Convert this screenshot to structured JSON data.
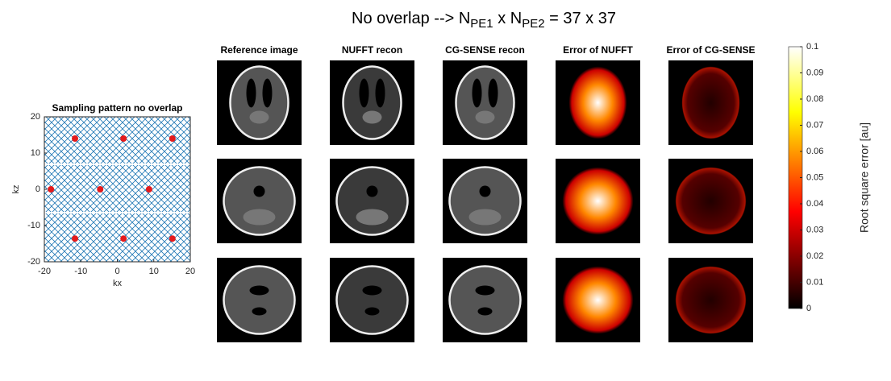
{
  "title_parts": [
    "No overlap --> N",
    "PE1",
    " x N",
    "PE2",
    " = 37 x 37"
  ],
  "panels": {
    "column_titles": [
      "Reference image",
      "NUFFT recon",
      "CG-SENSE recon",
      "Error of NUFFT",
      "Error of CG-SENSE"
    ]
  },
  "chart_data": [
    {
      "type": "scatter",
      "title": "Sampling pattern no overlap",
      "xlabel": "kx",
      "ylabel": "kz",
      "x": [
        -11.6,
        1.7,
        15.1,
        -18.2,
        -4.7,
        8.7,
        -11.6,
        1.7,
        15.1
      ],
      "values": [
        14,
        14,
        14,
        0,
        0,
        0,
        -13.6,
        -13.6,
        -13.6
      ],
      "color": "#e41a1c",
      "xlim": [
        -20,
        20
      ],
      "ylim": [
        -20,
        20
      ],
      "xticks": [
        -20,
        -10,
        0,
        10,
        20
      ],
      "yticks": [
        -20,
        -10,
        0,
        10,
        20
      ]
    },
    {
      "type": "colorbar",
      "ylabel": "Root square error [au]",
      "ylim": [
        0,
        0.1
      ],
      "yticks": [
        0,
        0.01,
        0.02,
        0.03,
        0.04,
        0.05,
        0.06,
        0.07,
        0.08,
        0.09,
        0.1
      ]
    }
  ]
}
